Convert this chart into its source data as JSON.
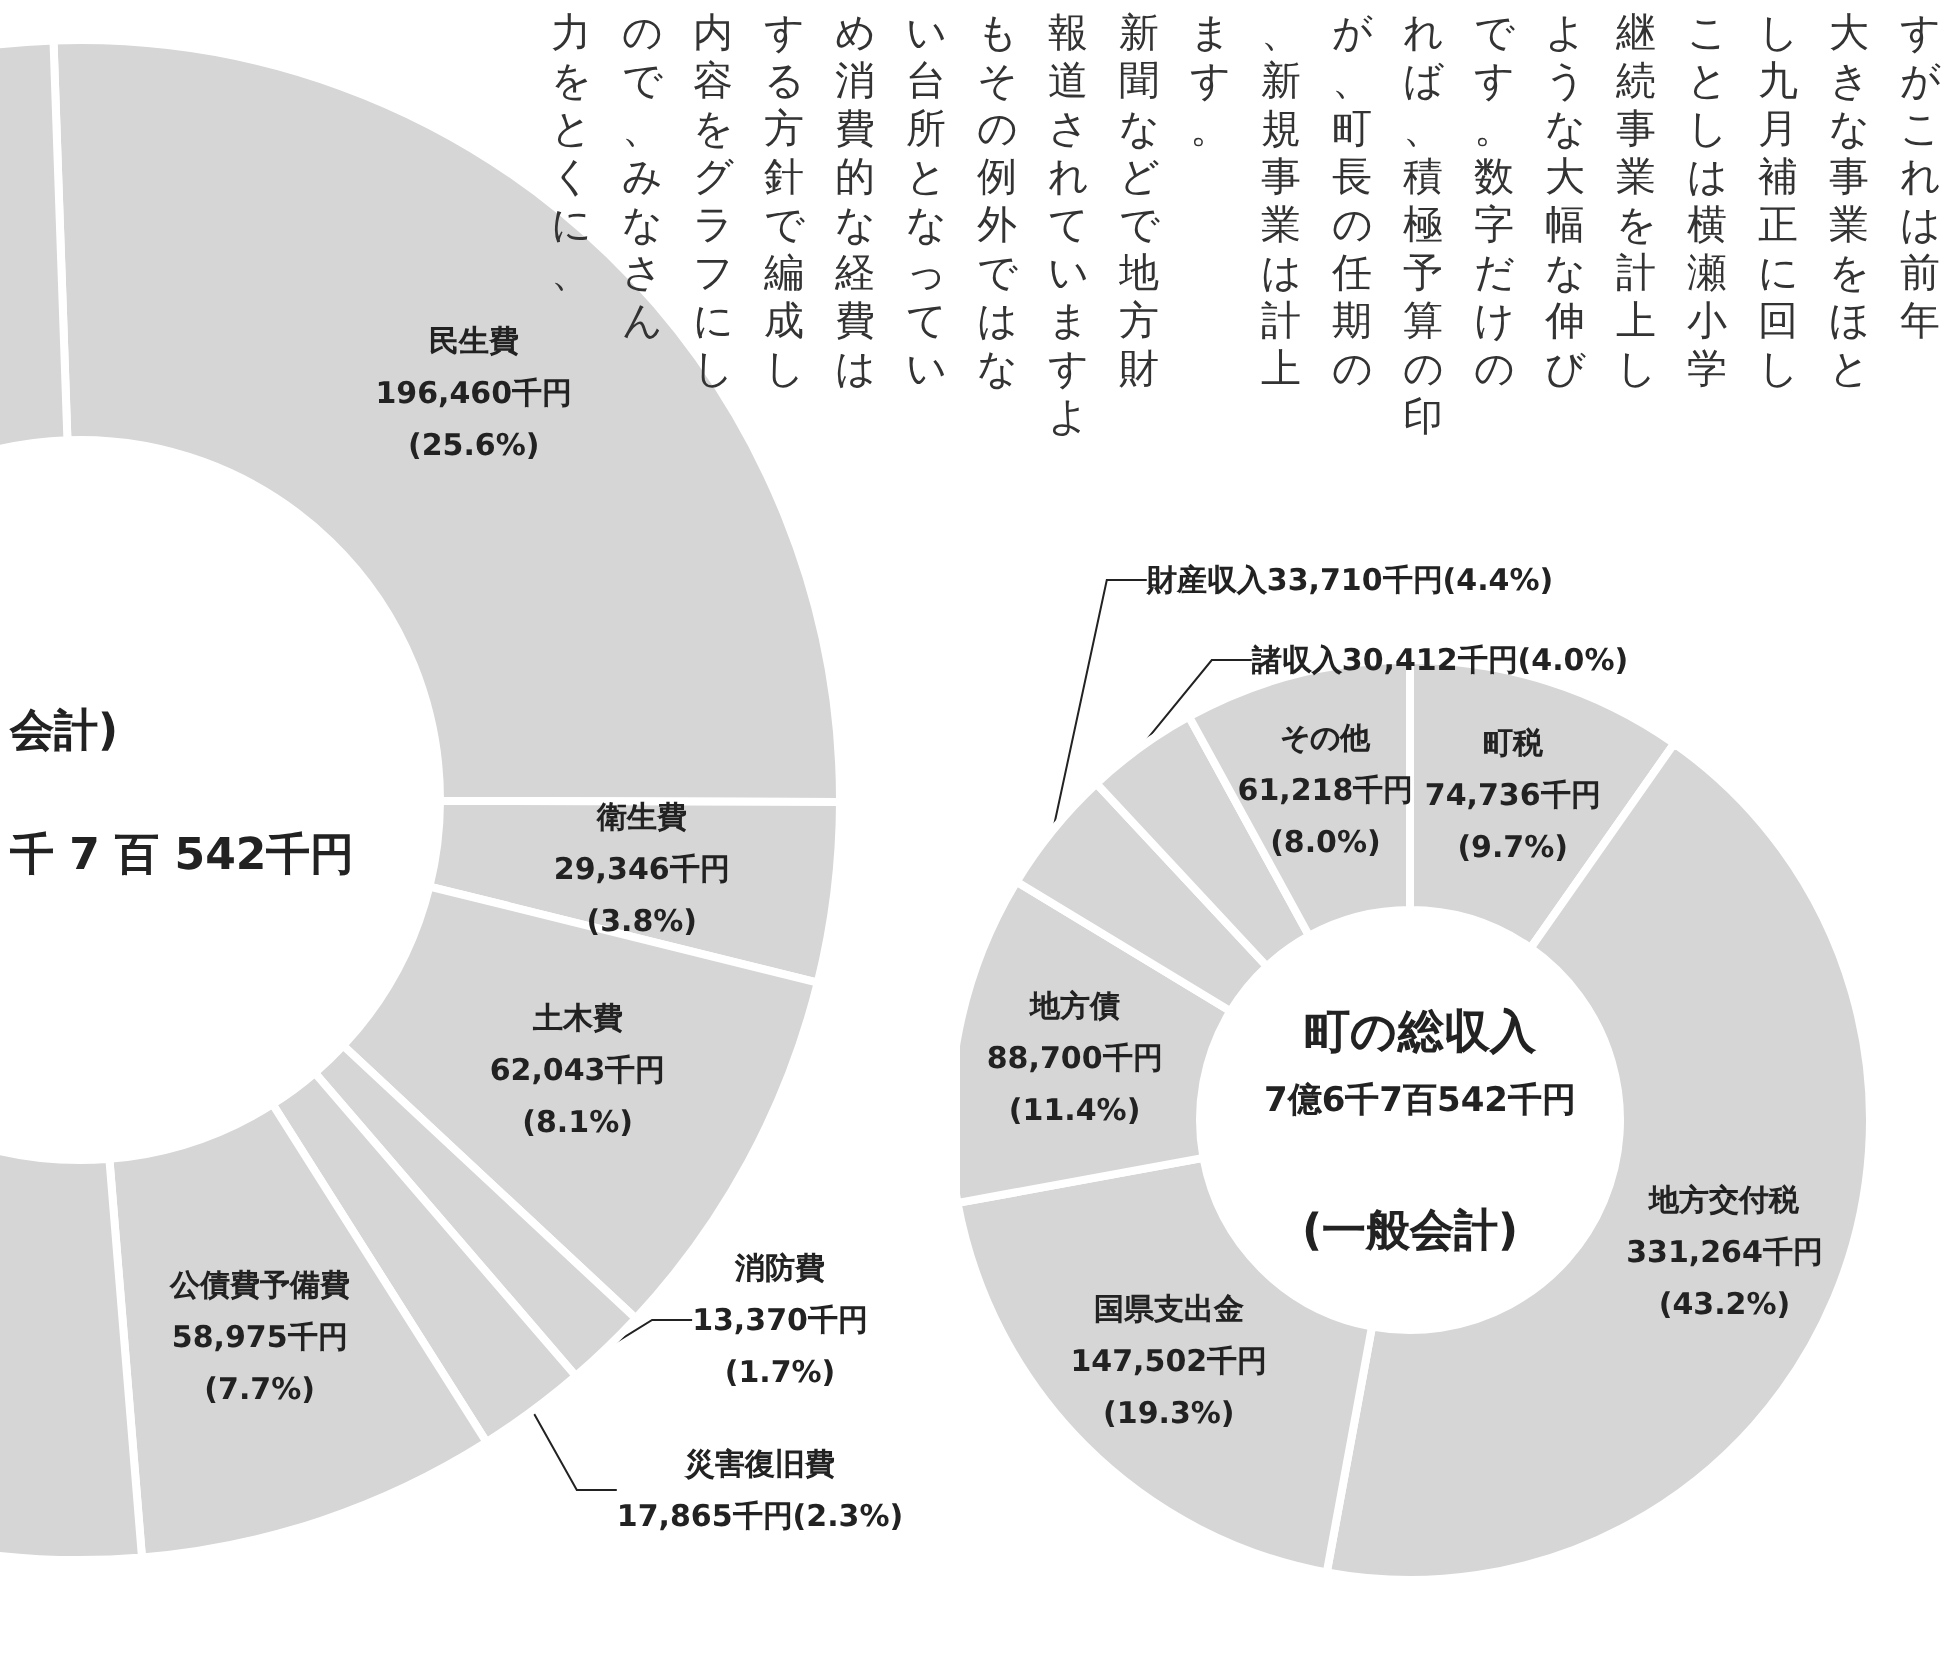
{
  "chart_data": [
    {
      "type": "donut",
      "categories": [
        "民生費",
        "衛生費",
        "土木費",
        "消防費",
        "災害復旧費",
        "公債費予備費",
        null
      ],
      "values": [
        196460,
        29346,
        62043,
        13370,
        17865,
        58975,
        389483
      ],
      "value_labels": [
        "196,460千円\n(25.6%)",
        "29,346千円\n(3.8%)",
        "62,043千円\n(8.1%)",
        "13,370千円\n(1.7%)",
        "17,865千円(2.3%)",
        "58,975千円\n(7.7%)",
        null
      ],
      "colors": [
        "#d6d6d6",
        "#d6d6d6",
        "#d6d6d6",
        "#d6d6d6",
        "#d6d6d6",
        "#d6d6d6",
        "#d6d6d6"
      ],
      "annotations": [
        "会計)",
        "千 7 百 542千円"
      ]
    },
    {
      "type": "donut",
      "title": "町の総収入",
      "subtitle": "7億6千7百542千円",
      "categories": [
        "町税",
        "地方交付税",
        "国県支出金",
        "地方債",
        "財産収入",
        "諸収入",
        "その他"
      ],
      "values": [
        74736,
        331264,
        147502,
        88700,
        33710,
        30412,
        61218
      ],
      "value_labels": [
        "74,736千円\n(9.7%)",
        "331,264千円\n(43.2%)",
        "147,502千円\n(19.3%)",
        "88,700千円\n(11.4%)",
        "33,710千円(4.4%)",
        "30,412千円(4.0%)",
        "61,218千円\n(8.0%)"
      ],
      "colors": [
        "#d6d6d6",
        "#d6d6d6",
        "#d6d6d6",
        "#d6d6d6",
        "#d6d6d6",
        "#d6d6d6",
        "#d6d6d6"
      ],
      "annotations": [
        "(一般会計)"
      ]
    },
    {
      "type": "other",
      "annotations": [
        "すがこれは前年",
        "大きな事業をほと",
        "し九月補正に回し",
        "ことしは横瀬小学",
        "継続事業を計上し",
        "ような大幅な伸び",
        "です。数字だけの",
        "れば、積極予算の印",
        "が、町長の任期の",
        "、新規事業は計上",
        "ます。",
        "新聞などで地方財",
        "報道されていますよ",
        "もその例外ではな",
        "い台所となってい",
        "め消費的な経費は",
        "する方針で編成し",
        "内容をグラフにし",
        "ので、みなさん",
        "力をとくに、"
      ]
    }
  ]
}
